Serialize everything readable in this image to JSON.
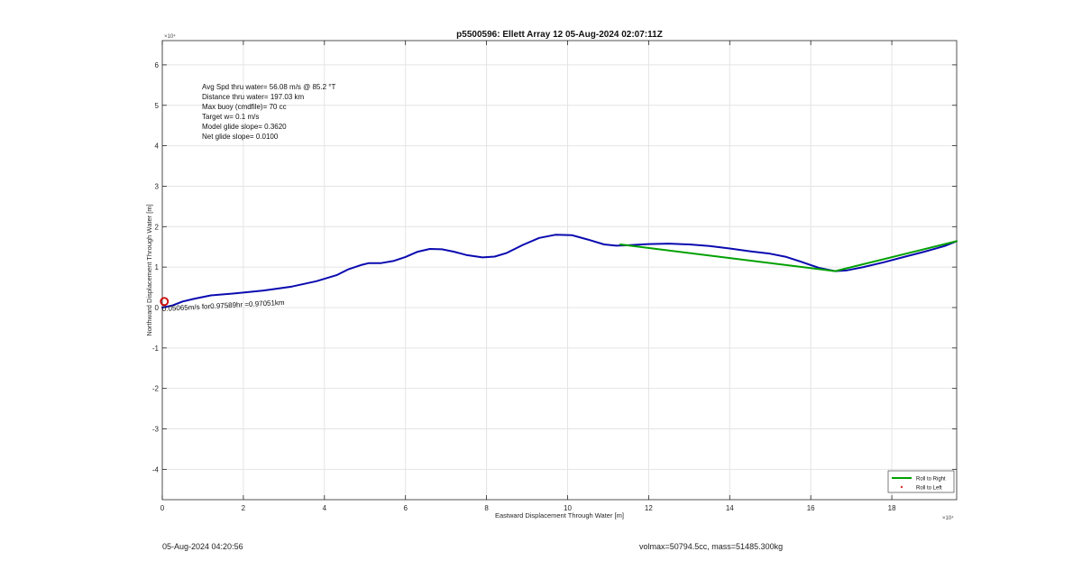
{
  "chart_data": {
    "type": "line",
    "title": "p5500596: Ellett Array 12 05-Aug-2024 02:07:11Z",
    "xlabel": "Eastward Displacement Through Water [m]",
    "ylabel": "Northward Displacement Through Water [m]",
    "xlim": [
      0,
      19.6
    ],
    "ylim": [
      -4.75,
      6.6
    ],
    "x_exponent_label": "×10⁴",
    "y_exponent_label": "×10⁴",
    "x_ticks": [
      0,
      2,
      4,
      6,
      8,
      10,
      12,
      14,
      16,
      18
    ],
    "y_ticks": [
      -4,
      -3,
      -2,
      -1,
      0,
      1,
      2,
      3,
      4,
      5,
      6
    ],
    "grid": true,
    "legend_position": "bottom-right",
    "series": [
      {
        "name": "",
        "color": "#0a0ab0",
        "x": [
          0,
          0.25,
          0.5,
          0.8,
          1.2,
          1.8,
          2.5,
          3.2,
          3.8,
          4.3,
          4.6,
          4.9,
          5.1,
          5.4,
          5.7,
          6.0,
          6.3,
          6.6,
          6.9,
          7.2,
          7.5,
          7.9,
          8.2,
          8.5,
          8.9,
          9.3,
          9.7,
          10.1,
          10.5,
          10.9,
          11.2,
          11.5,
          12.0,
          12.5,
          13.0,
          13.5,
          14.0,
          14.5,
          15.0,
          15.4,
          15.8,
          16.2,
          16.6,
          16.9,
          17.3,
          17.8,
          18.3,
          18.8,
          19.3,
          19.6
        ],
        "y": [
          0.0,
          0.05,
          0.15,
          0.22,
          0.3,
          0.35,
          0.42,
          0.52,
          0.65,
          0.8,
          0.95,
          1.05,
          1.1,
          1.1,
          1.15,
          1.25,
          1.38,
          1.45,
          1.44,
          1.38,
          1.3,
          1.24,
          1.26,
          1.35,
          1.55,
          1.72,
          1.8,
          1.79,
          1.68,
          1.56,
          1.53,
          1.54,
          1.57,
          1.58,
          1.56,
          1.52,
          1.46,
          1.39,
          1.33,
          1.25,
          1.12,
          0.98,
          0.9,
          0.92,
          1.0,
          1.12,
          1.25,
          1.38,
          1.52,
          1.64
        ]
      },
      {
        "name": "Roll to Right",
        "color": "#00a000",
        "x": [
          11.3,
          16.6,
          19.6
        ],
        "y": [
          1.56,
          0.9,
          1.64
        ]
      }
    ],
    "legend": [
      {
        "label": "Roll to Right",
        "color": "#00a000",
        "marker": "line"
      },
      {
        "label": "Roll to Left",
        "color": "#e03030",
        "marker": "dot"
      }
    ],
    "start_marker": {
      "x": 0.05,
      "y": 0.15,
      "color": "#cc0000"
    },
    "start_annotation": "0.05065m/s for0.97589hr =0.97051km",
    "annotations": [
      "Avg Spd thru water= 56.08 m/s @  85.2 °T",
      "Distance thru water= 197.03 km",
      "Max buoy (cmdfile)= 70 cc",
      "Target w= 0.1 m/s",
      "Model glide slope= 0.3620",
      "Net glide slope= 0.0100"
    ]
  },
  "footer": {
    "left": "05-Aug-2024 04:20:56",
    "right": "volmax=50794.5cc, mass=51485.300kg"
  }
}
